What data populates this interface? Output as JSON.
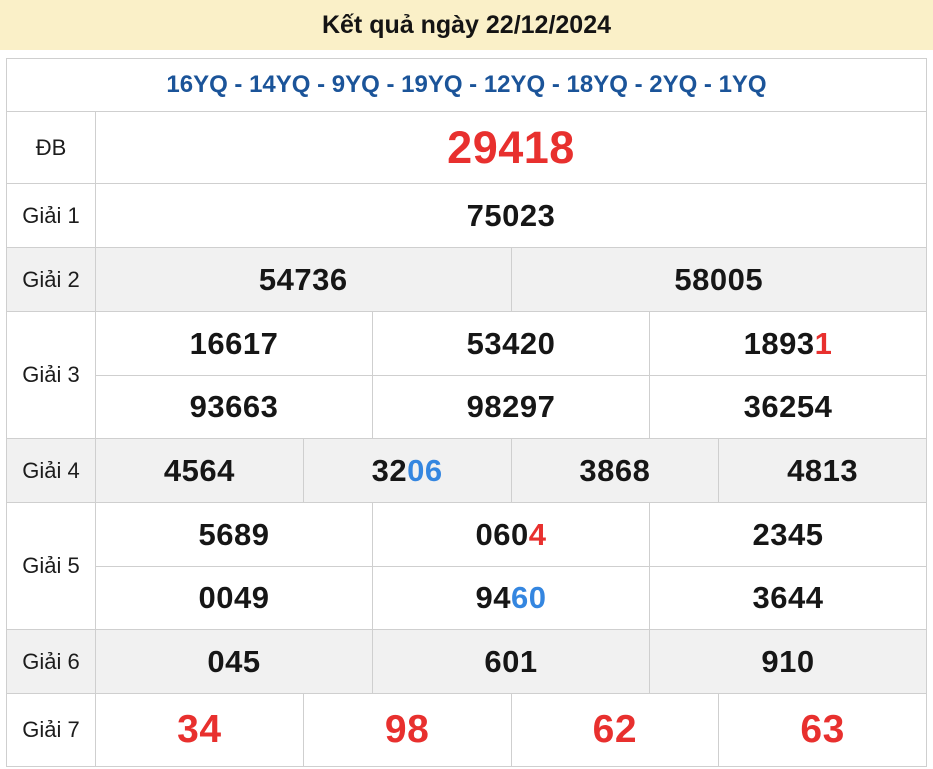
{
  "header": {
    "title": "Kết quả ngày 22/12/2024"
  },
  "colors": {
    "accent_red": "#e8302e",
    "accent_blue": "#3486e0",
    "header_blue": "#1b5499",
    "title_bg": "#faf0c8",
    "row_shade": "#f1f1f1",
    "border": "#cfcfcf"
  },
  "table": {
    "loto_line": "16YQ - 14YQ - 9YQ - 19YQ - 12YQ - 18YQ - 2YQ - 1YQ",
    "rows": [
      {
        "id": "db",
        "label": "ĐB",
        "shade": false,
        "size": "xl",
        "lines": [
          [
            [
              {
                "text": "29418",
                "color": "red"
              }
            ]
          ]
        ]
      },
      {
        "id": "g1",
        "label": "Giải 1",
        "shade": false,
        "size": "md",
        "lines": [
          [
            [
              {
                "text": "75023"
              }
            ]
          ]
        ]
      },
      {
        "id": "g2",
        "label": "Giải 2",
        "shade": true,
        "size": "md",
        "lines": [
          [
            [
              {
                "text": "54736"
              }
            ],
            [
              {
                "text": "58005"
              }
            ]
          ]
        ]
      },
      {
        "id": "g3",
        "label": "Giải 3",
        "shade": false,
        "size": "md",
        "lines": [
          [
            [
              {
                "text": "16617"
              }
            ],
            [
              {
                "text": "53420"
              }
            ],
            [
              {
                "text": "1893"
              },
              {
                "text": "1",
                "color": "red"
              }
            ]
          ],
          [
            [
              {
                "text": "93663"
              }
            ],
            [
              {
                "text": "98297"
              }
            ],
            [
              {
                "text": "36254"
              }
            ]
          ]
        ]
      },
      {
        "id": "g4",
        "label": "Giải 4",
        "shade": true,
        "size": "md",
        "lines": [
          [
            [
              {
                "text": "4564"
              }
            ],
            [
              {
                "text": "32"
              },
              {
                "text": "06",
                "color": "blue"
              }
            ],
            [
              {
                "text": "3868"
              }
            ],
            [
              {
                "text": "4813"
              }
            ]
          ]
        ]
      },
      {
        "id": "g5",
        "label": "Giải 5",
        "shade": false,
        "size": "md",
        "lines": [
          [
            [
              {
                "text": "5689"
              }
            ],
            [
              {
                "text": "060"
              },
              {
                "text": "4",
                "color": "red"
              }
            ],
            [
              {
                "text": "2345"
              }
            ]
          ],
          [
            [
              {
                "text": "0049"
              }
            ],
            [
              {
                "text": "94"
              },
              {
                "text": "60",
                "color": "blue"
              }
            ],
            [
              {
                "text": "3644"
              }
            ]
          ]
        ]
      },
      {
        "id": "g6",
        "label": "Giải 6",
        "shade": true,
        "size": "md",
        "lines": [
          [
            [
              {
                "text": "045"
              }
            ],
            [
              {
                "text": "601"
              }
            ],
            [
              {
                "text": "910"
              }
            ]
          ]
        ]
      },
      {
        "id": "g7",
        "label": "Giải 7",
        "shade": false,
        "size": "lg",
        "lines": [
          [
            [
              {
                "text": "34",
                "color": "red"
              }
            ],
            [
              {
                "text": "98",
                "color": "red"
              }
            ],
            [
              {
                "text": "62",
                "color": "red"
              }
            ],
            [
              {
                "text": "63",
                "color": "red"
              }
            ]
          ]
        ]
      }
    ]
  }
}
